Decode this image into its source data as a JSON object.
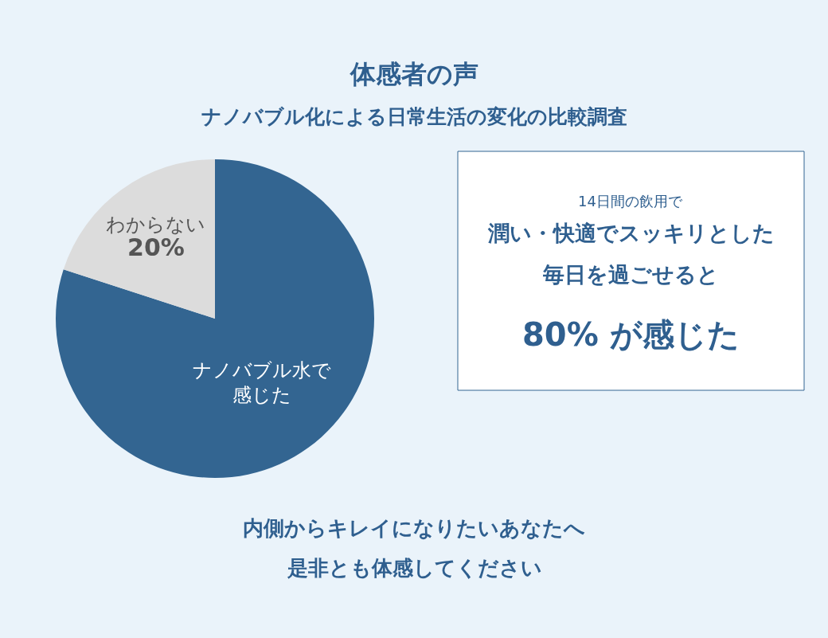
{
  "chart_data": {
    "type": "pie",
    "title": "体感者の声",
    "subtitle": "ナノバブル化による日常生活の変化の比較調査",
    "categories": [
      "ナノバブル水で感じた",
      "わからない"
    ],
    "values": [
      80,
      20
    ],
    "value_labels": [
      null,
      "20%"
    ],
    "colors": [
      "#336591",
      "#dcdcdc"
    ],
    "legend": false,
    "annotations": [
      "14日間の飲用で",
      "潤い・快適でスッキリとした",
      "毎日を過ごせると",
      "80% が感じた",
      "内側からキレイになりたいあなたへ",
      "是非とも体感してください"
    ]
  }
}
